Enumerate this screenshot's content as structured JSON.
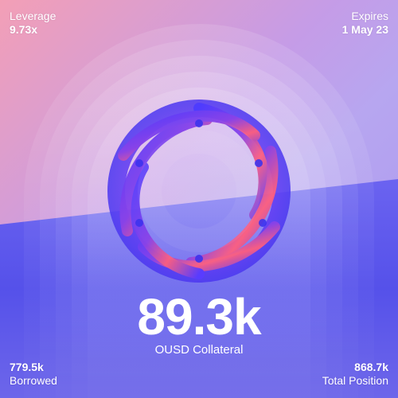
{
  "top_left": {
    "label": "Leverage",
    "value": "9.73x"
  },
  "top_right": {
    "label": "Expires",
    "value": "1 May 23"
  },
  "center": {
    "value": "89.3k",
    "label": "OUSD Collateral"
  },
  "bottom_left": {
    "value": "779.5k",
    "label": "Borrowed"
  },
  "bottom_right": {
    "value": "868.7k",
    "label": "Total Position"
  },
  "colors": {
    "top_gradient_start": "#f39fb6",
    "top_gradient_end": "#a894ee",
    "bottom_band": "#5a53e8",
    "knot_primary": "#5b3bff",
    "knot_highlight": "#ff5a7a"
  },
  "icons": {
    "artwork": "twisted-torus-knot-icon"
  }
}
